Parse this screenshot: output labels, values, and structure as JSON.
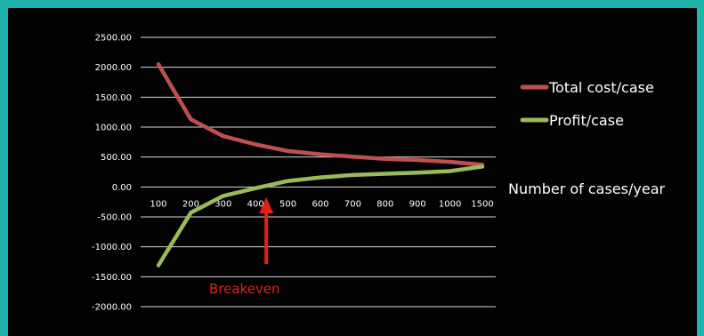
{
  "background_color": "#1fb5ad",
  "plot_background": "#020203",
  "chart_data": {
    "type": "line",
    "categories": [
      "100",
      "200",
      "300",
      "400",
      "500",
      "600",
      "700",
      "800",
      "900",
      "1000",
      "1500"
    ],
    "series": [
      {
        "name": "Total cost/case",
        "color": "#c0504d",
        "values": [
          2050,
          1130,
          850,
          710,
          600,
          545,
          505,
          470,
          450,
          420,
          370
        ]
      },
      {
        "name": "Profit/case",
        "color": "#9bbb59",
        "values": [
          -1310,
          -430,
          -150,
          -20,
          100,
          160,
          200,
          220,
          240,
          265,
          340
        ]
      }
    ],
    "yticks": [
      "2500.00",
      "2000.00",
      "1500.00",
      "1000.00",
      "500.00",
      "0.00",
      "-500.00",
      "-1000.00",
      "-1500.00",
      "-2000.00"
    ],
    "ylim": [
      -2000,
      2500
    ],
    "xlabel": "Number of cases/year",
    "ylabel": "",
    "grid": "horizontal",
    "legend_position": "right",
    "annotation": {
      "text": "Breakeven",
      "color": "#e32119",
      "points_to_category": "400"
    }
  }
}
